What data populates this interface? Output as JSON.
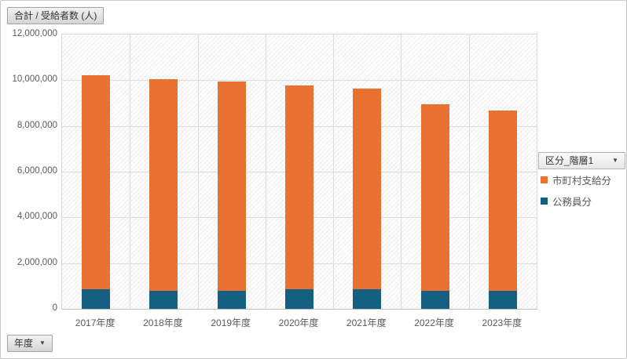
{
  "buttons": {
    "value_field": "合計 / 受給者数 (人)",
    "legend_field": "区分_階層1",
    "axis_field": "年度",
    "dropdown_glyph": "▼"
  },
  "chart_data": {
    "type": "bar",
    "stacked": true,
    "title": "合計 / 受給者数 (人)",
    "xlabel": "年度",
    "ylabel": "受給者数 (人)",
    "categories": [
      "2017年度",
      "2018年度",
      "2019年度",
      "2020年度",
      "2021年度",
      "2022年度",
      "2023年度"
    ],
    "series": [
      {
        "name": "市町村支給分",
        "color": "#E97132",
        "values": [
          9370000,
          9230000,
          9130000,
          8920000,
          8780000,
          8140000,
          7860000
        ]
      },
      {
        "name": "公務員分",
        "color": "#156082",
        "values": [
          850000,
          800000,
          800000,
          850000,
          850000,
          800000,
          800000
        ]
      }
    ],
    "stack_order_bottom_to_top": [
      "公務員分",
      "市町村支給分"
    ],
    "totals": [
      10220000,
      10030000,
      9930000,
      9770000,
      9630000,
      8940000,
      8660000
    ],
    "ylim": [
      0,
      12000000
    ],
    "yticks": [
      0,
      2000000,
      4000000,
      6000000,
      8000000,
      10000000,
      12000000
    ],
    "grid": true,
    "legend_position": "right",
    "legend_field": "区分_階層1"
  },
  "colors": {
    "gridline": "#dcdcdc",
    "axis_text": "#595959",
    "plot_border": "#d9d9d9",
    "hatch_background": "#f2f2f2"
  }
}
